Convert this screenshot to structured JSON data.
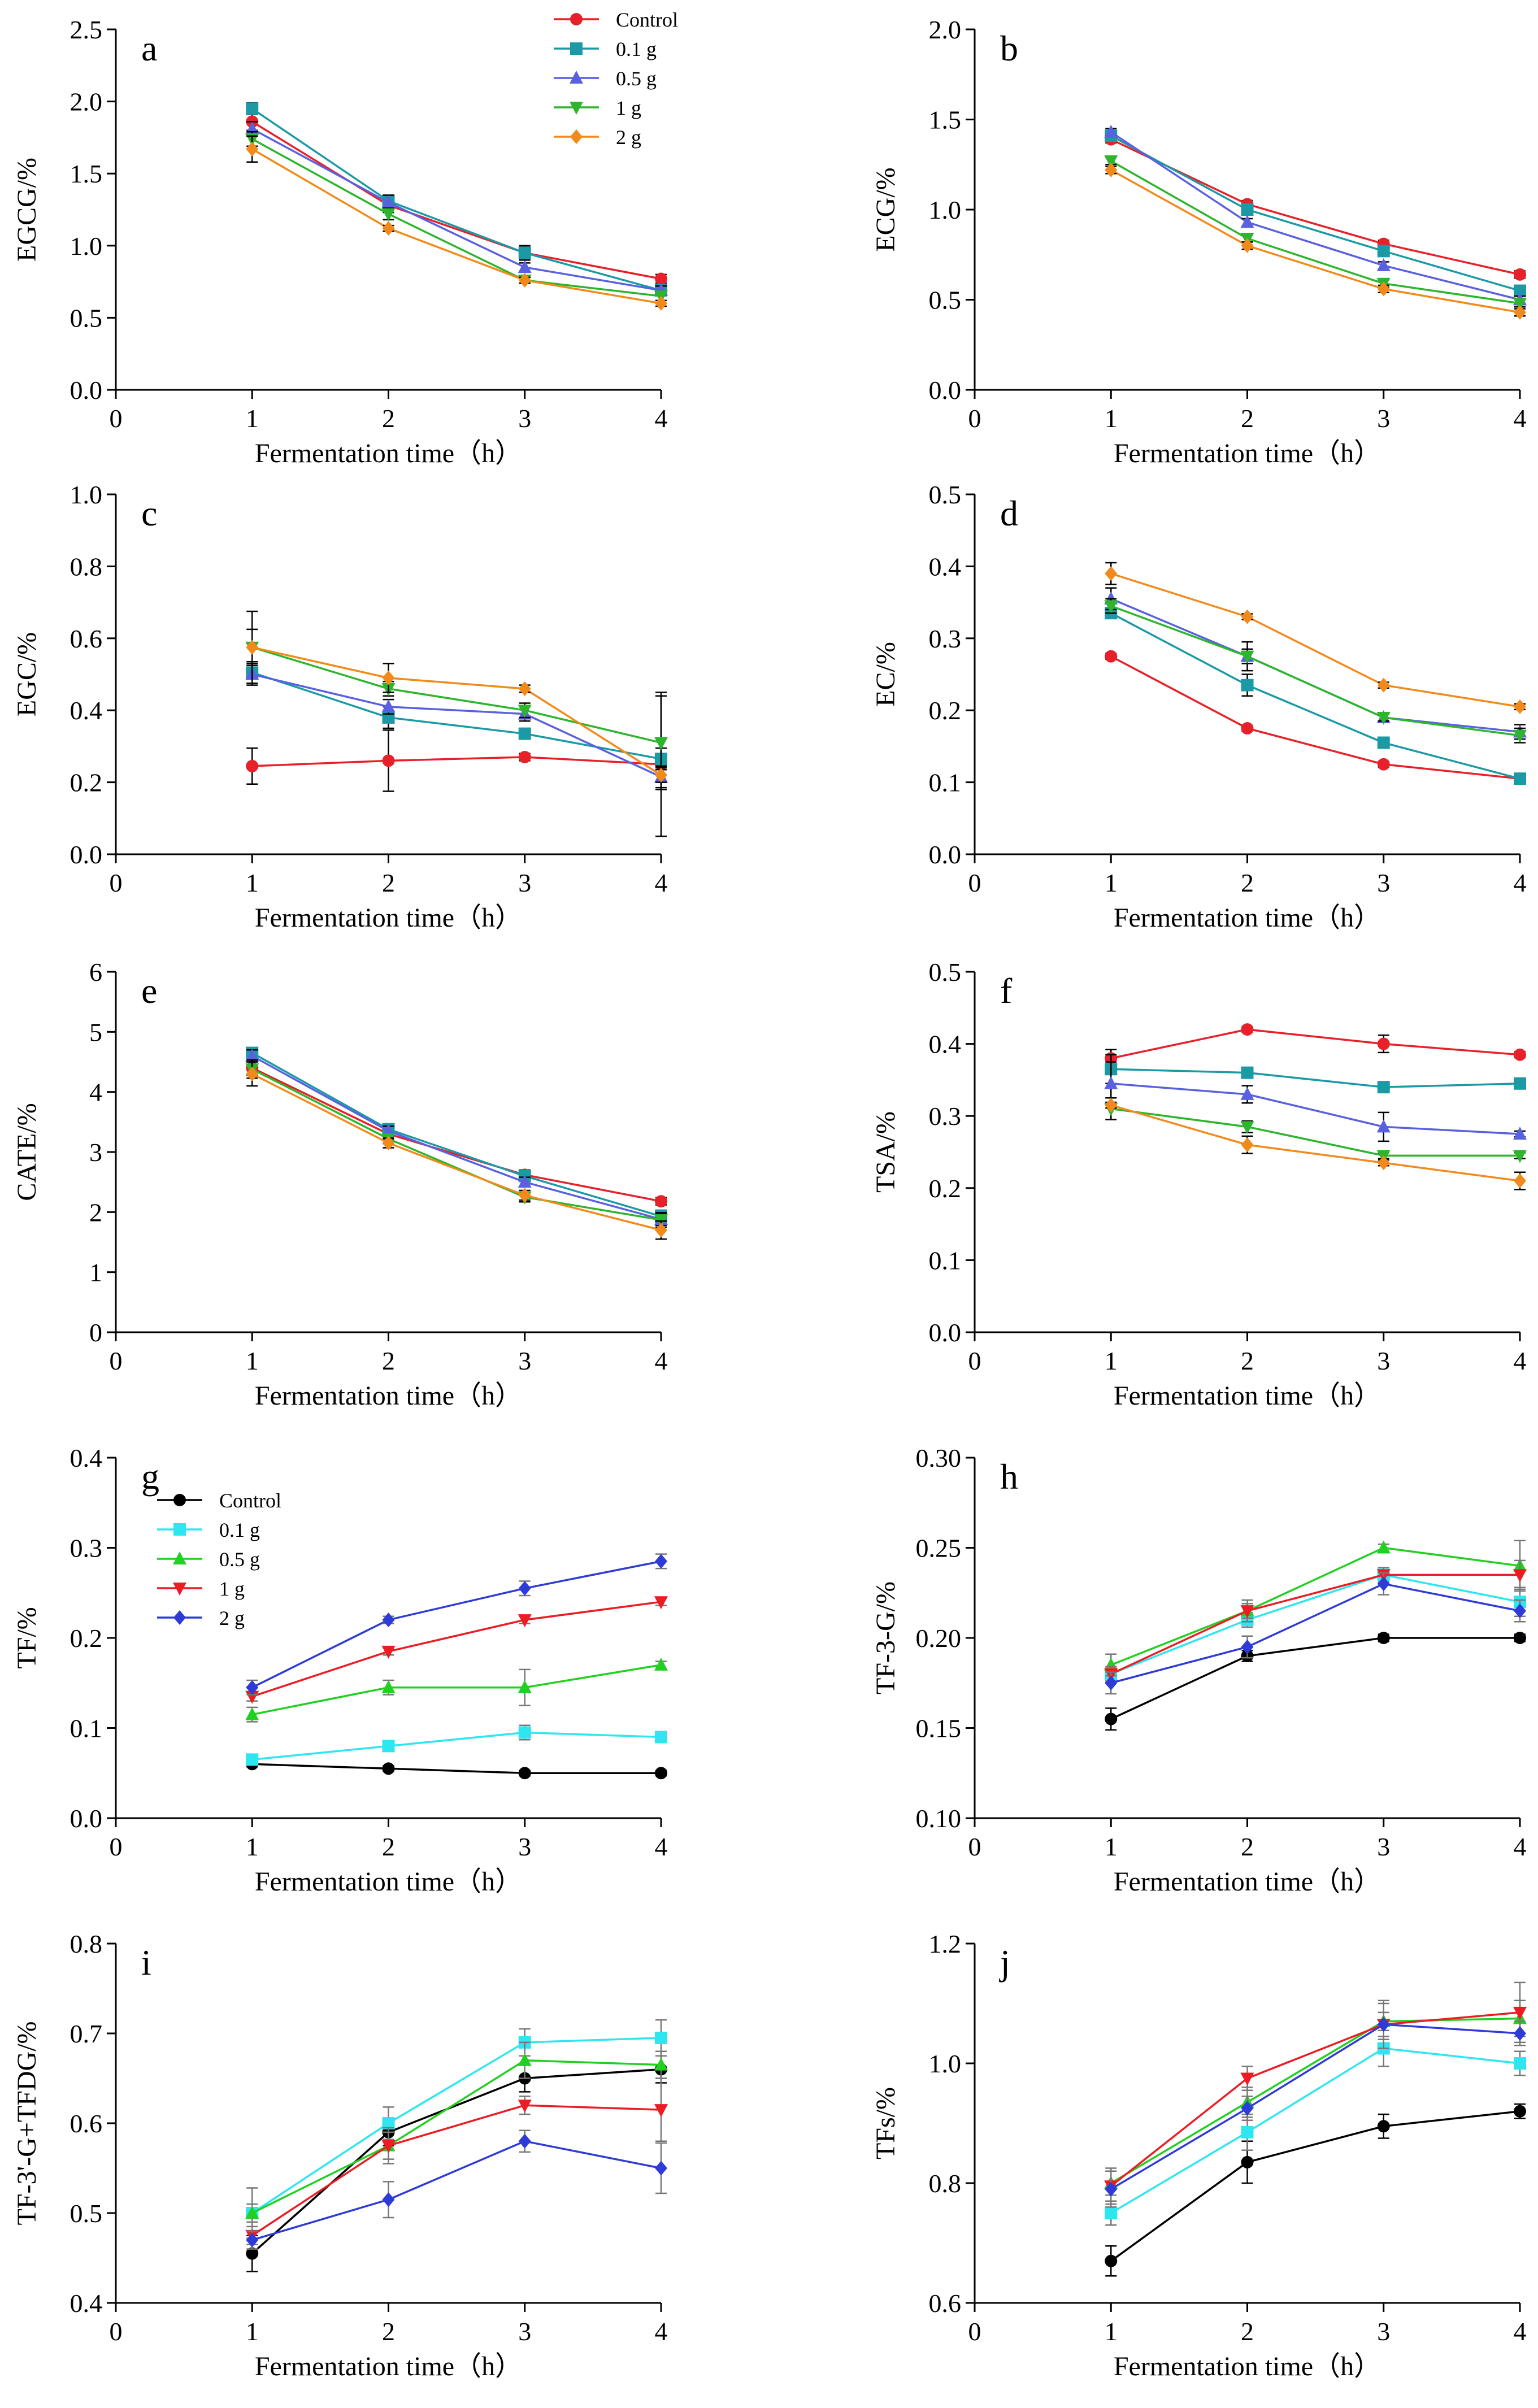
{
  "figure": {
    "xlabel": "Fermentation time（h）",
    "colors": {
      "red": "#E8202A",
      "teal": "#1B9AA6",
      "blue": "#5A61E0",
      "green": "#2DB52D",
      "orange": "#F28A1B",
      "black": "#000000",
      "cyan": "#2EE6F0",
      "bright_green": "#22D022",
      "red2": "#EC1C24",
      "blue2": "#2E3BD6"
    },
    "legend_top": {
      "items": [
        {
          "label": "Control",
          "color": "#E8202A",
          "marker": "circle"
        },
        {
          "label": "0.1 g",
          "color": "#1B9AA6",
          "marker": "square"
        },
        {
          "label": "0.5 g",
          "color": "#5A61E0",
          "marker": "triangle-up"
        },
        {
          "label": "1 g",
          "color": "#2DB52D",
          "marker": "triangle-down"
        },
        {
          "label": "2 g",
          "color": "#F28A1B",
          "marker": "diamond"
        }
      ]
    },
    "legend_bottom": {
      "items": [
        {
          "label": "Control",
          "color": "#000000",
          "marker": "circle"
        },
        {
          "label": "0.1 g",
          "color": "#2EE6F0",
          "marker": "square"
        },
        {
          "label": "0.5 g",
          "color": "#22D022",
          "marker": "triangle-up"
        },
        {
          "label": "1 g",
          "color": "#EC1C24",
          "marker": "triangle-down"
        },
        {
          "label": "2 g",
          "color": "#2E3BD6",
          "marker": "diamond"
        }
      ]
    }
  },
  "chart_data": [
    {
      "id": "a",
      "type": "line",
      "letter": "a",
      "ylabel": "EGCG/%",
      "x": [
        1,
        2,
        3,
        4
      ],
      "xlim": [
        0,
        4
      ],
      "ylim": [
        0,
        2.5
      ],
      "yticks": [
        "0.0",
        "0.5",
        "1.0",
        "1.5",
        "2.0",
        "2.5"
      ],
      "ystep": 0.5,
      "palette": "top",
      "series": [
        {
          "name": "Control",
          "values": [
            1.86,
            1.28,
            0.95,
            0.77
          ],
          "err": [
            0.06,
            0.05,
            0.05,
            0.03
          ]
        },
        {
          "name": "0.1 g",
          "values": [
            1.95,
            1.31,
            0.95,
            0.69
          ],
          "err": [
            0.04,
            0.04,
            0.04,
            0.03
          ]
        },
        {
          "name": "0.5 g",
          "values": [
            1.81,
            1.3,
            0.85,
            0.69
          ],
          "err": [
            0.05,
            0.05,
            0.03,
            0.03
          ]
        },
        {
          "name": "1 g",
          "values": [
            1.74,
            1.22,
            0.76,
            0.65
          ],
          "err": [
            0.05,
            0.04,
            0.02,
            0.03
          ]
        },
        {
          "name": "2 g",
          "values": [
            1.67,
            1.12,
            0.76,
            0.6
          ],
          "err": [
            0.09,
            0.02,
            0.02,
            0.02
          ]
        }
      ]
    },
    {
      "id": "b",
      "type": "line",
      "letter": "b",
      "ylabel": "ECG/%",
      "x": [
        1,
        2,
        3,
        4
      ],
      "xlim": [
        0,
        4
      ],
      "ylim": [
        0,
        2.0
      ],
      "yticks": [
        "0.0",
        "0.5",
        "1.0",
        "1.5",
        "2.0"
      ],
      "ystep": 0.5,
      "palette": "top",
      "series": [
        {
          "name": "Control",
          "values": [
            1.39,
            1.03,
            0.81,
            0.64
          ],
          "err": [
            0.02,
            0.02,
            0.02,
            0.02
          ]
        },
        {
          "name": "0.1 g",
          "values": [
            1.41,
            1.0,
            0.77,
            0.55
          ],
          "err": [
            0.02,
            0.02,
            0.02,
            0.02
          ]
        },
        {
          "name": "0.5 g",
          "values": [
            1.43,
            0.93,
            0.69,
            0.5
          ],
          "err": [
            0.02,
            0.02,
            0.02,
            0.02
          ]
        },
        {
          "name": "1 g",
          "values": [
            1.27,
            0.84,
            0.59,
            0.48
          ],
          "err": [
            0.02,
            0.02,
            0.02,
            0.02
          ]
        },
        {
          "name": "2 g",
          "values": [
            1.22,
            0.8,
            0.56,
            0.43
          ],
          "err": [
            0.02,
            0.02,
            0.02,
            0.02
          ]
        }
      ]
    },
    {
      "id": "c",
      "type": "line",
      "letter": "c",
      "ylabel": "EGC/%",
      "x": [
        1,
        2,
        3,
        4
      ],
      "xlim": [
        0,
        4
      ],
      "ylim": [
        0,
        1.0
      ],
      "yticks": [
        "0.0",
        "0.2",
        "0.4",
        "0.6",
        "0.8",
        "1.0"
      ],
      "ystep": 0.2,
      "palette": "top",
      "series": [
        {
          "name": "Control",
          "values": [
            0.245,
            0.26,
            0.27,
            0.25
          ],
          "err": [
            0.05,
            0.085,
            0.01,
            0.2
          ]
        },
        {
          "name": "0.1 g",
          "values": [
            0.505,
            0.38,
            0.335,
            0.265
          ],
          "err": [
            0.03,
            0.03,
            0.01,
            0.03
          ]
        },
        {
          "name": "0.5 g",
          "values": [
            0.5,
            0.41,
            0.39,
            0.215
          ],
          "err": [
            0.03,
            0.02,
            0.02,
            0.03
          ]
        },
        {
          "name": "1 g",
          "values": [
            0.575,
            0.46,
            0.4,
            0.31
          ],
          "err": [
            0.05,
            0.02,
            0.02,
            0.13
          ]
        },
        {
          "name": "2 g",
          "values": [
            0.575,
            0.49,
            0.46,
            0.22
          ],
          "err": [
            0.1,
            0.04,
            0.01,
            0.02
          ]
        }
      ]
    },
    {
      "id": "d",
      "type": "line",
      "letter": "d",
      "ylabel": "EC/%",
      "x": [
        1,
        2,
        3,
        4
      ],
      "xlim": [
        0,
        4
      ],
      "ylim": [
        0,
        0.5
      ],
      "yticks": [
        "0.0",
        "0.1",
        "0.2",
        "0.3",
        "0.4",
        "0.5"
      ],
      "ystep": 0.1,
      "palette": "top",
      "series": [
        {
          "name": "Control",
          "values": [
            0.275,
            0.175,
            0.125,
            0.105
          ],
          "err": [
            0.004,
            0.004,
            0.004,
            0.004
          ]
        },
        {
          "name": "0.1 g",
          "values": [
            0.335,
            0.235,
            0.155,
            0.105
          ],
          "err": [
            0.005,
            0.015,
            0.004,
            0.004
          ]
        },
        {
          "name": "0.5 g",
          "values": [
            0.355,
            0.275,
            0.19,
            0.17
          ],
          "err": [
            0.015,
            0.02,
            0.005,
            0.01
          ]
        },
        {
          "name": "1 g",
          "values": [
            0.345,
            0.275,
            0.19,
            0.165
          ],
          "err": [
            0.01,
            0.01,
            0.005,
            0.01
          ]
        },
        {
          "name": "2 g",
          "values": [
            0.39,
            0.33,
            0.235,
            0.205
          ],
          "err": [
            0.015,
            0.004,
            0.004,
            0.004
          ]
        }
      ]
    },
    {
      "id": "e",
      "type": "line",
      "letter": "e",
      "ylabel": "CATE/%",
      "x": [
        1,
        2,
        3,
        4
      ],
      "xlim": [
        0,
        4
      ],
      "ylim": [
        0,
        6
      ],
      "yticks": [
        "0",
        "1",
        "2",
        "3",
        "4",
        "5",
        "6"
      ],
      "ystep": 1,
      "palette": "top",
      "series": [
        {
          "name": "Control",
          "values": [
            4.4,
            3.3,
            2.62,
            2.18
          ],
          "err": [
            0.12,
            0.08,
            0.08,
            0.06
          ]
        },
        {
          "name": "0.1 g",
          "values": [
            4.65,
            3.38,
            2.6,
            1.93
          ],
          "err": [
            0.08,
            0.08,
            0.08,
            0.1
          ]
        },
        {
          "name": "0.5 g",
          "values": [
            4.6,
            3.35,
            2.5,
            1.88
          ],
          "err": [
            0.1,
            0.08,
            0.08,
            0.1
          ]
        },
        {
          "name": "1 g",
          "values": [
            4.38,
            3.22,
            2.25,
            1.87
          ],
          "err": [
            0.15,
            0.08,
            0.08,
            0.12
          ]
        },
        {
          "name": "2 g",
          "values": [
            4.3,
            3.15,
            2.28,
            1.7
          ],
          "err": [
            0.2,
            0.08,
            0.08,
            0.15
          ]
        }
      ]
    },
    {
      "id": "f",
      "type": "line",
      "letter": "f",
      "ylabel": "TSA/%",
      "x": [
        1,
        2,
        3,
        4
      ],
      "xlim": [
        0,
        4
      ],
      "ylim": [
        0,
        0.5
      ],
      "yticks": [
        "0.0",
        "0.1",
        "0.2",
        "0.3",
        "0.4",
        "0.5"
      ],
      "ystep": 0.1,
      "palette": "top",
      "series": [
        {
          "name": "Control",
          "values": [
            0.38,
            0.42,
            0.4,
            0.385
          ],
          "err": [
            0.012,
            0.004,
            0.012,
            0.004
          ]
        },
        {
          "name": "0.1 g",
          "values": [
            0.365,
            0.36,
            0.34,
            0.345
          ],
          "err": [
            0.02,
            0.004,
            0.004,
            0.004
          ]
        },
        {
          "name": "0.5 g",
          "values": [
            0.345,
            0.33,
            0.285,
            0.275
          ],
          "err": [
            0.03,
            0.012,
            0.02,
            0.004
          ]
        },
        {
          "name": "1 g",
          "values": [
            0.31,
            0.285,
            0.245,
            0.245
          ],
          "err": [
            0.015,
            0.008,
            0.004,
            0.004
          ]
        },
        {
          "name": "2 g",
          "values": [
            0.315,
            0.26,
            0.235,
            0.21
          ],
          "err": [
            0.004,
            0.012,
            0.004,
            0.012
          ]
        }
      ]
    },
    {
      "id": "g",
      "type": "line",
      "letter": "g",
      "ylabel": "TF/%",
      "x": [
        1,
        2,
        3,
        4
      ],
      "xlim": [
        0,
        4
      ],
      "ylim": [
        0,
        0.4
      ],
      "yticks": [
        "0.0",
        "0.1",
        "0.2",
        "0.3",
        "0.4"
      ],
      "ystep": 0.1,
      "palette": "bottom",
      "series": [
        {
          "name": "Control",
          "values": [
            0.06,
            0.055,
            0.05,
            0.05
          ],
          "err": [
            0.003,
            0.003,
            0.003,
            0.003
          ]
        },
        {
          "name": "0.1 g",
          "values": [
            0.065,
            0.08,
            0.095,
            0.09
          ],
          "err": [
            0.005,
            0.005,
            0.008,
            0.004
          ]
        },
        {
          "name": "0.5 g",
          "values": [
            0.115,
            0.145,
            0.145,
            0.17
          ],
          "err": [
            0.008,
            0.008,
            0.02,
            0.004
          ]
        },
        {
          "name": "1 g",
          "values": [
            0.135,
            0.185,
            0.22,
            0.24
          ],
          "err": [
            0.005,
            0.004,
            0.004,
            0.004
          ]
        },
        {
          "name": "2 g",
          "values": [
            0.145,
            0.22,
            0.255,
            0.285
          ],
          "err": [
            0.008,
            0.004,
            0.008,
            0.008
          ]
        }
      ]
    },
    {
      "id": "h",
      "type": "line",
      "letter": "h",
      "ylabel": "TF-3-G/%",
      "x": [
        1,
        2,
        3,
        4
      ],
      "xlim": [
        0,
        4
      ],
      "ylim": [
        0.1,
        0.3
      ],
      "yticks": [
        "0.10",
        "0.15",
        "0.20",
        "0.25",
        "0.30"
      ],
      "ystep": 0.05,
      "palette": "bottom",
      "series": [
        {
          "name": "Control",
          "values": [
            0.155,
            0.19,
            0.2,
            0.2
          ],
          "err": [
            0.006,
            0.003,
            0.002,
            0.002
          ]
        },
        {
          "name": "0.1 g",
          "values": [
            0.18,
            0.21,
            0.235,
            0.22
          ],
          "err": [
            0.004,
            0.004,
            0.004,
            0.008
          ]
        },
        {
          "name": "0.5 g",
          "values": [
            0.185,
            0.215,
            0.25,
            0.24
          ],
          "err": [
            0.006,
            0.004,
            0.002,
            0.014
          ]
        },
        {
          "name": "1 g",
          "values": [
            0.18,
            0.215,
            0.235,
            0.235
          ],
          "err": [
            0.004,
            0.006,
            0.004,
            0.008
          ]
        },
        {
          "name": "2 g",
          "values": [
            0.175,
            0.195,
            0.23,
            0.215
          ],
          "err": [
            0.006,
            0.006,
            0.006,
            0.006
          ]
        }
      ]
    },
    {
      "id": "i",
      "type": "line",
      "letter": "i",
      "ylabel": "TF-3'-G+TFDG/%",
      "x": [
        1,
        2,
        3,
        4
      ],
      "xlim": [
        0,
        4
      ],
      "ylim": [
        0.4,
        0.8
      ],
      "yticks": [
        "0.4",
        "0.5",
        "0.6",
        "0.7",
        "0.8"
      ],
      "ystep": 0.1,
      "palette": "bottom",
      "series": [
        {
          "name": "Control",
          "values": [
            0.455,
            0.59,
            0.65,
            0.66
          ],
          "err": [
            0.02,
            0.015,
            0.015,
            0.015
          ]
        },
        {
          "name": "0.1 g",
          "values": [
            0.5,
            0.6,
            0.69,
            0.695
          ],
          "err": [
            0.028,
            0.018,
            0.015,
            0.02
          ]
        },
        {
          "name": "0.5 g",
          "values": [
            0.5,
            0.575,
            0.67,
            0.665
          ],
          "err": [
            0.01,
            0.015,
            0.02,
            0.015
          ]
        },
        {
          "name": "1 g",
          "values": [
            0.475,
            0.575,
            0.62,
            0.615
          ],
          "err": [
            0.01,
            0.02,
            0.01,
            0.035
          ]
        },
        {
          "name": "2 g",
          "values": [
            0.47,
            0.515,
            0.58,
            0.55
          ],
          "err": [
            0.01,
            0.02,
            0.012,
            0.028
          ]
        }
      ]
    },
    {
      "id": "j",
      "type": "line",
      "letter": "j",
      "ylabel": "TFs/%",
      "x": [
        1,
        2,
        3,
        4
      ],
      "xlim": [
        0,
        4
      ],
      "ylim": [
        0.6,
        1.2
      ],
      "yticks": [
        "0.6",
        "0.8",
        "1.0",
        "1.2"
      ],
      "ystep": 0.2,
      "palette": "bottom",
      "series": [
        {
          "name": "Control",
          "values": [
            0.67,
            0.835,
            0.895,
            0.92
          ],
          "err": [
            0.025,
            0.035,
            0.02,
            0.012
          ]
        },
        {
          "name": "0.1 g",
          "values": [
            0.75,
            0.885,
            1.025,
            1.0
          ],
          "err": [
            0.02,
            0.03,
            0.03,
            0.02
          ]
        },
        {
          "name": "0.5 g",
          "values": [
            0.8,
            0.935,
            1.07,
            1.075
          ],
          "err": [
            0.02,
            0.025,
            0.03,
            0.03
          ]
        },
        {
          "name": "1 g",
          "values": [
            0.795,
            0.975,
            1.065,
            1.085
          ],
          "err": [
            0.03,
            0.02,
            0.04,
            0.05
          ]
        },
        {
          "name": "2 g",
          "values": [
            0.79,
            0.925,
            1.065,
            1.05
          ],
          "err": [
            0.03,
            0.02,
            0.02,
            0.02
          ]
        }
      ]
    }
  ]
}
